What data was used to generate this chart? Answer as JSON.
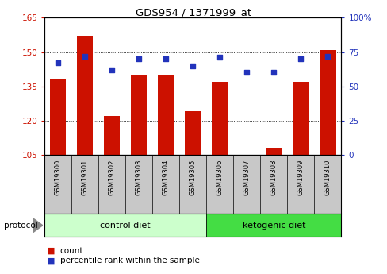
{
  "title": "GDS954 / 1371999_at",
  "samples": [
    "GSM19300",
    "GSM19301",
    "GSM19302",
    "GSM19303",
    "GSM19304",
    "GSM19305",
    "GSM19306",
    "GSM19307",
    "GSM19308",
    "GSM19309",
    "GSM19310"
  ],
  "counts": [
    138,
    157,
    122,
    140,
    140,
    124,
    137,
    105,
    108,
    137,
    151
  ],
  "percentiles": [
    67,
    72,
    62,
    70,
    70,
    65,
    71,
    60,
    60,
    70,
    72
  ],
  "n_control": 6,
  "n_ketogenic": 5,
  "ylim_left": [
    105,
    165
  ],
  "ylim_right": [
    0,
    100
  ],
  "yticks_left": [
    105,
    120,
    135,
    150,
    165
  ],
  "yticks_right": [
    0,
    25,
    50,
    75,
    100
  ],
  "bar_color": "#cc1100",
  "dot_color": "#2233bb",
  "tick_label_color_left": "#cc1100",
  "tick_label_color_right": "#2233bb",
  "bg_xticklabel": "#c8c8c8",
  "bg_control": "#ccffcc",
  "bg_ketogenic": "#44dd44",
  "group_labels": [
    "control diet",
    "ketogenic diet"
  ],
  "legend_count": "count",
  "legend_percentile": "percentile rank within the sample",
  "protocol_label": "protocol"
}
